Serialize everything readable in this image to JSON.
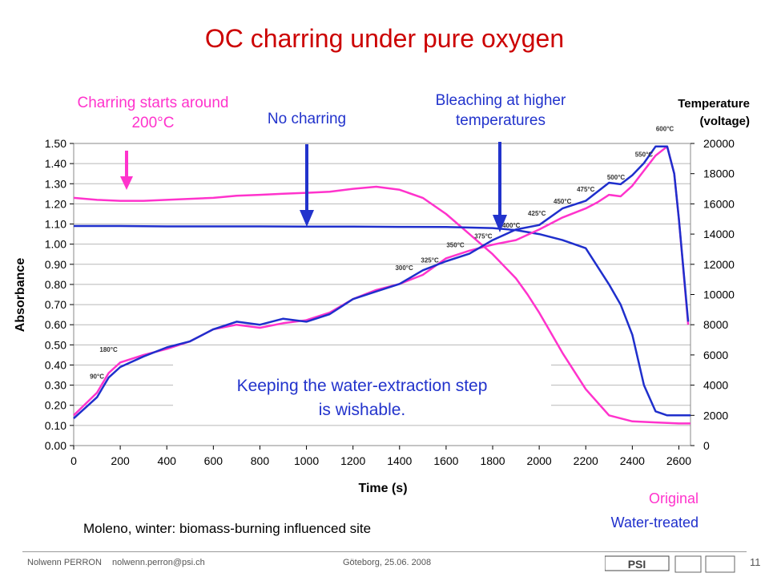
{
  "title": "OC charring under pure oxygen",
  "callouts": {
    "charring": "Charring starts around 200°C",
    "no_charring": "No charring",
    "bleaching": "Bleaching at higher temperatures"
  },
  "right_axis": {
    "title_line1": "Temperature",
    "title_line2": "(voltage)"
  },
  "annotation": {
    "line1": "Keeping the water-extraction step",
    "line2": "is wishable."
  },
  "legend": {
    "original": "Original",
    "water_treated": "Water-treated"
  },
  "site_note": "Moleno, winter: biomass-burning influenced site",
  "footer": {
    "author": "Nolwenn PERRON",
    "email": "nolwenn.perron@psi.ch",
    "event": "Göteborg, 25.06. 2008",
    "page": "11",
    "logo_text": "PSI"
  },
  "colors": {
    "title": "#cc0000",
    "original": "#ff33cc",
    "water_treated": "#1f2fcc",
    "callout": "#2233cc"
  },
  "chart_data": {
    "type": "line",
    "xlabel": "Time (s)",
    "ylabel": "Absorbance",
    "y2label": "Temperature (voltage)",
    "xlim": [
      0,
      2650
    ],
    "ylim": [
      0,
      1.5
    ],
    "y2lim": [
      0,
      20000
    ],
    "xticks": [
      0,
      200,
      400,
      600,
      800,
      1000,
      1200,
      1400,
      1600,
      1800,
      2000,
      2200,
      2400,
      2600
    ],
    "yticks": [
      "0.00",
      "0.10",
      "0.20",
      "0.30",
      "0.40",
      "0.50",
      "0.60",
      "0.70",
      "0.80",
      "0.90",
      "1.00",
      "1.10",
      "1.20",
      "1.30",
      "1.40",
      "1.50"
    ],
    "y2ticks": [
      0,
      2000,
      4000,
      6000,
      8000,
      10000,
      12000,
      14000,
      16000,
      18000,
      20000
    ],
    "grid": true,
    "series": [
      {
        "name": "Original",
        "axis": "left",
        "color": "#ff33cc",
        "x": [
          0,
          100,
          200,
          300,
          400,
          500,
          600,
          700,
          800,
          900,
          1000,
          1100,
          1200,
          1300,
          1400,
          1500,
          1600,
          1700,
          1800,
          1900,
          1950,
          2000,
          2050,
          2100,
          2200,
          2300,
          2400,
          2500,
          2600,
          2650
        ],
        "y": [
          1.23,
          1.22,
          1.215,
          1.215,
          1.22,
          1.225,
          1.23,
          1.24,
          1.245,
          1.25,
          1.255,
          1.26,
          1.275,
          1.285,
          1.27,
          1.23,
          1.15,
          1.05,
          0.95,
          0.83,
          0.75,
          0.66,
          0.56,
          0.46,
          0.28,
          0.15,
          0.12,
          0.115,
          0.11,
          0.11
        ]
      },
      {
        "name": "Water-treated",
        "axis": "left",
        "color": "#1f2fcc",
        "x": [
          0,
          200,
          400,
          600,
          800,
          1000,
          1200,
          1400,
          1600,
          1800,
          1900,
          2000,
          2100,
          2200,
          2300,
          2350,
          2400,
          2450,
          2500,
          2550,
          2600,
          2650
        ],
        "y": [
          1.09,
          1.09,
          1.088,
          1.088,
          1.088,
          1.087,
          1.087,
          1.086,
          1.085,
          1.08,
          1.07,
          1.05,
          1.02,
          0.98,
          0.8,
          0.7,
          0.55,
          0.3,
          0.17,
          0.15,
          0.15,
          0.15
        ]
      },
      {
        "name": "Original",
        "axis": "right",
        "color": "#ff33cc",
        "role": "temperature",
        "x": [
          0,
          100,
          150,
          200,
          300,
          400,
          500,
          600,
          700,
          800,
          900,
          1000,
          1100,
          1200,
          1300,
          1400,
          1500,
          1600,
          1700,
          1800,
          1900,
          2000,
          2100,
          2200,
          2250,
          2300,
          2350,
          2400,
          2450,
          2500,
          2550,
          2580,
          2600,
          2640
        ],
        "y": [
          2000,
          3500,
          4800,
          5500,
          6000,
          6400,
          6900,
          7700,
          8000,
          7800,
          8100,
          8300,
          8800,
          9700,
          10300,
          10700,
          11300,
          12400,
          12900,
          13300,
          13600,
          14300,
          15100,
          15700,
          16100,
          16600,
          16500,
          17200,
          18200,
          19200,
          19800,
          18000,
          15000,
          8000
        ]
      },
      {
        "name": "Water-treated",
        "axis": "right",
        "color": "#1f2fcc",
        "role": "temperature",
        "x": [
          0,
          100,
          150,
          200,
          300,
          400,
          500,
          600,
          700,
          800,
          900,
          1000,
          1100,
          1200,
          1300,
          1400,
          1500,
          1600,
          1700,
          1800,
          1900,
          2000,
          2100,
          2200,
          2250,
          2300,
          2350,
          2400,
          2450,
          2500,
          2550,
          2580,
          2600,
          2640
        ],
        "y": [
          1800,
          3200,
          4500,
          5200,
          5900,
          6500,
          6900,
          7700,
          8200,
          8000,
          8400,
          8200,
          8700,
          9700,
          10200,
          10700,
          11600,
          12200,
          12700,
          13600,
          14300,
          14600,
          15700,
          16200,
          16800,
          17400,
          17300,
          17900,
          18700,
          19800,
          19800,
          18000,
          15000,
          8200
        ]
      }
    ],
    "temperature_labels": [
      {
        "text": "90°C",
        "x": 100,
        "y": 4100
      },
      {
        "text": "180°C",
        "x": 150,
        "y": 5900
      },
      {
        "text": "300°C",
        "x": 1420,
        "y": 11300
      },
      {
        "text": "325°C",
        "x": 1530,
        "y": 11800
      },
      {
        "text": "350°C",
        "x": 1640,
        "y": 12800
      },
      {
        "text": "375°C",
        "x": 1760,
        "y": 13400
      },
      {
        "text": "400°C",
        "x": 1880,
        "y": 14100
      },
      {
        "text": "425°C",
        "x": 1990,
        "y": 14900
      },
      {
        "text": "450°C",
        "x": 2100,
        "y": 15700
      },
      {
        "text": "475°C",
        "x": 2200,
        "y": 16500
      },
      {
        "text": "500°C",
        "x": 2330,
        "y": 17300
      },
      {
        "text": "550°C",
        "x": 2450,
        "y": 18800
      },
      {
        "text": "600°C",
        "x": 2540,
        "y": 20500
      }
    ]
  }
}
